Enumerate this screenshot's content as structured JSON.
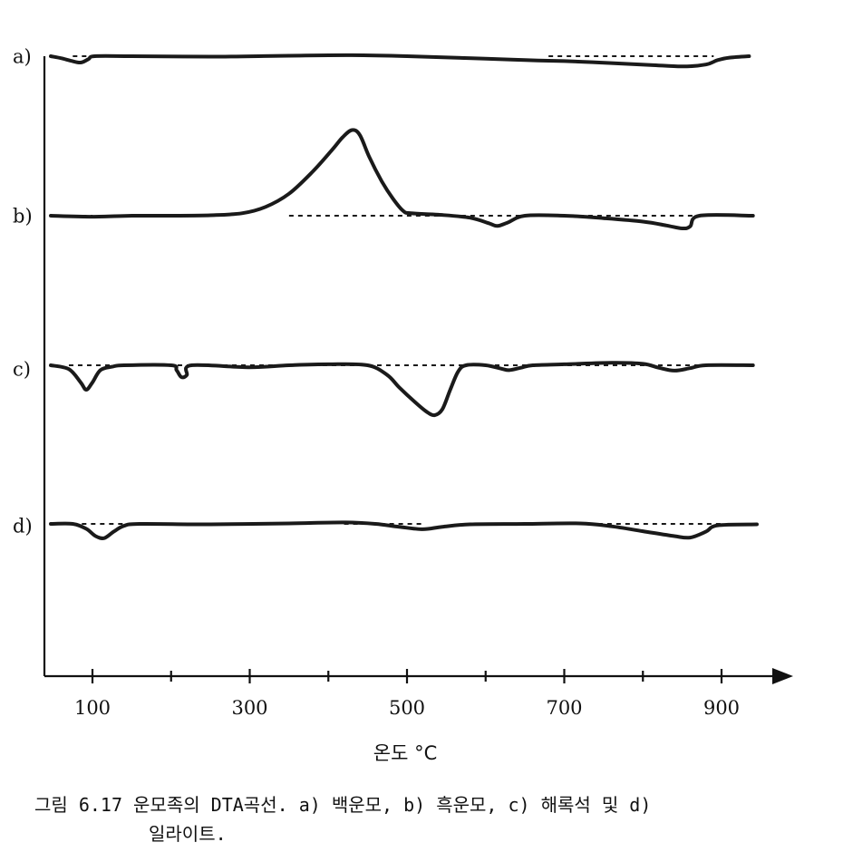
{
  "chart_data": {
    "type": "line",
    "xlabel": "온도 °C",
    "x_ticks": [
      100,
      300,
      500,
      700,
      900
    ],
    "x_minor_ticks": [
      200,
      400,
      600,
      800
    ],
    "xlim": [
      45,
      945
    ],
    "series": [
      {
        "name": "a)",
        "baseline_segments": [
          [
            75,
            95
          ],
          [
            680,
            890
          ]
        ],
        "points": [
          [
            47,
            0
          ],
          [
            60,
            -0.4
          ],
          [
            72,
            -0.9
          ],
          [
            85,
            -1.3
          ],
          [
            95,
            -0.6
          ],
          [
            103,
            0
          ],
          [
            150,
            0
          ],
          [
            250,
            -0.1
          ],
          [
            350,
            0.1
          ],
          [
            430,
            0.2
          ],
          [
            500,
            0
          ],
          [
            560,
            -0.3
          ],
          [
            600,
            -0.5
          ],
          [
            650,
            -0.8
          ],
          [
            700,
            -1.0
          ],
          [
            760,
            -1.4
          ],
          [
            810,
            -1.8
          ],
          [
            850,
            -2.1
          ],
          [
            880,
            -1.7
          ],
          [
            895,
            -0.8
          ],
          [
            910,
            -0.3
          ],
          [
            935,
            0
          ]
        ]
      },
      {
        "name": "b)",
        "baseline_segments": [
          [
            75,
            100
          ],
          [
            350,
            940
          ]
        ],
        "points": [
          [
            47,
            0
          ],
          [
            100,
            -0.2
          ],
          [
            150,
            0
          ],
          [
            200,
            0
          ],
          [
            250,
            0.1
          ],
          [
            290,
            0.5
          ],
          [
            320,
            1.8
          ],
          [
            350,
            4.5
          ],
          [
            380,
            9
          ],
          [
            405,
            13.5
          ],
          [
            418,
            16
          ],
          [
            430,
            17.5
          ],
          [
            440,
            16.5
          ],
          [
            452,
            12
          ],
          [
            468,
            7
          ],
          [
            482,
            3.5
          ],
          [
            495,
            1
          ],
          [
            505,
            0.5
          ],
          [
            540,
            0.2
          ],
          [
            580,
            -0.4
          ],
          [
            605,
            -1.6
          ],
          [
            615,
            -2.1
          ],
          [
            628,
            -1.4
          ],
          [
            650,
            0
          ],
          [
            700,
            0
          ],
          [
            750,
            -0.5
          ],
          [
            800,
            -1.2
          ],
          [
            830,
            -2
          ],
          [
            850,
            -2.6
          ],
          [
            860,
            -2.2
          ],
          [
            872,
            0
          ],
          [
            940,
            0
          ]
        ]
      },
      {
        "name": "c)",
        "baseline_segments": [
          [
            70,
            940
          ]
        ],
        "points": [
          [
            47,
            0
          ],
          [
            70,
            -0.8
          ],
          [
            85,
            -3.5
          ],
          [
            92,
            -5
          ],
          [
            100,
            -3.5
          ],
          [
            110,
            -1
          ],
          [
            125,
            -0.3
          ],
          [
            140,
            0
          ],
          [
            200,
            0
          ],
          [
            207,
            -1
          ],
          [
            213,
            -2.4
          ],
          [
            220,
            -2
          ],
          [
            226,
            0
          ],
          [
            300,
            -0.4
          ],
          [
            350,
            0
          ],
          [
            400,
            0.2
          ],
          [
            450,
            0
          ],
          [
            475,
            -2
          ],
          [
            490,
            -4.5
          ],
          [
            510,
            -7.5
          ],
          [
            525,
            -9.5
          ],
          [
            535,
            -10.2
          ],
          [
            545,
            -9
          ],
          [
            555,
            -5
          ],
          [
            565,
            -1.3
          ],
          [
            575,
            0
          ],
          [
            600,
            0
          ],
          [
            620,
            -0.7
          ],
          [
            630,
            -1
          ],
          [
            645,
            -0.5
          ],
          [
            660,
            0
          ],
          [
            700,
            0.2
          ],
          [
            760,
            0.5
          ],
          [
            800,
            0.3
          ],
          [
            820,
            -0.5
          ],
          [
            840,
            -1.1
          ],
          [
            860,
            -0.6
          ],
          [
            880,
            0
          ],
          [
            940,
            0
          ]
        ]
      },
      {
        "name": "d)",
        "baseline_segments": [
          [
            75,
            140
          ],
          [
            420,
            520
          ],
          [
            720,
            900
          ]
        ],
        "points": [
          [
            47,
            0
          ],
          [
            75,
            0
          ],
          [
            92,
            -1
          ],
          [
            104,
            -2.5
          ],
          [
            115,
            -2.9
          ],
          [
            127,
            -1.6
          ],
          [
            140,
            -0.4
          ],
          [
            160,
            0
          ],
          [
            250,
            -0.1
          ],
          [
            350,
            0.1
          ],
          [
            420,
            0.3
          ],
          [
            460,
            0
          ],
          [
            490,
            -0.6
          ],
          [
            520,
            -1.1
          ],
          [
            545,
            -0.6
          ],
          [
            580,
            -0.1
          ],
          [
            650,
            0
          ],
          [
            720,
            0.1
          ],
          [
            760,
            -0.5
          ],
          [
            800,
            -1.5
          ],
          [
            840,
            -2.5
          ],
          [
            860,
            -2.8
          ],
          [
            880,
            -1.6
          ],
          [
            895,
            -0.3
          ],
          [
            945,
            -0.1
          ]
        ]
      }
    ]
  },
  "caption": {
    "line1": "그림 6.17  운모족의 DTA곡선. a) 백운모, b) 흑운모, c) 해록석 및 d)",
    "line2": "일라이트."
  }
}
